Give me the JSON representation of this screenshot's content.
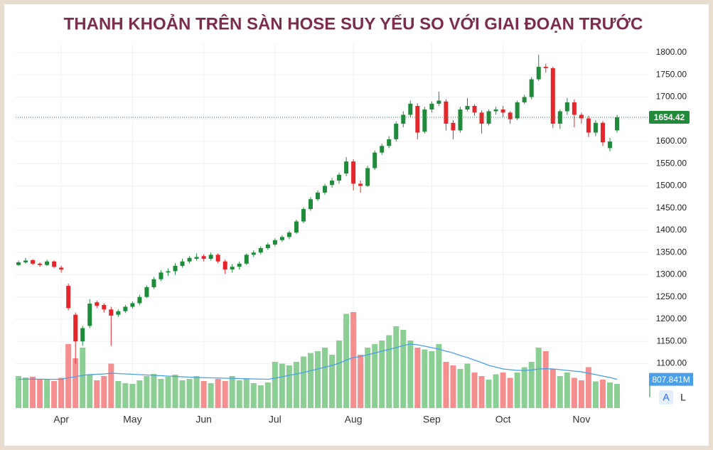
{
  "chart_data": {
    "type": "candlestick",
    "title": "THANH KHOẢN TRÊN SÀN HOSE SUY YẾU SO VỚI GIAI ĐOẠN TRƯỚC",
    "categories": [
      null,
      null,
      null,
      null,
      null,
      null,
      "Apr",
      null,
      null,
      null,
      null,
      null,
      null,
      null,
      null,
      null,
      "May",
      null,
      null,
      null,
      null,
      null,
      null,
      null,
      null,
      null,
      "Jun",
      null,
      null,
      null,
      null,
      null,
      null,
      null,
      null,
      null,
      "Jul",
      null,
      null,
      null,
      null,
      null,
      null,
      null,
      null,
      null,
      null,
      "Aug",
      null,
      null,
      null,
      null,
      null,
      null,
      null,
      null,
      null,
      null,
      "Sep",
      null,
      null,
      null,
      null,
      null,
      null,
      null,
      null,
      null,
      "Oct",
      null,
      null,
      null,
      null,
      null,
      null,
      null,
      null,
      null,
      null,
      "Nov",
      null,
      null,
      null,
      null,
      null
    ],
    "open": [
      1322,
      1328,
      1333,
      1325,
      1322,
      1330,
      1316,
      1275,
      1210,
      1150,
      1185,
      1238,
      1232,
      1222,
      1210,
      1218,
      1228,
      1236,
      1250,
      1272,
      1290,
      1305,
      1308,
      1320,
      1330,
      1336,
      1342,
      1336,
      1345,
      1330,
      1312,
      1318,
      1325,
      1345,
      1350,
      1360,
      1368,
      1378,
      1385,
      1395,
      1420,
      1448,
      1470,
      1485,
      1502,
      1512,
      1528,
      1555,
      1505,
      1500,
      1540,
      1575,
      1590,
      1605,
      1640,
      1660,
      1680,
      1622,
      1672,
      1685,
      1690,
      1642,
      1625,
      1672,
      1680,
      1665,
      1640,
      1668,
      1672,
      1665,
      1652,
      1688,
      1700,
      1740,
      1768,
      1765,
      1640,
      1668,
      1688,
      1660,
      1652,
      1620,
      1642,
      1585,
      1625
    ],
    "high": [
      1332,
      1338,
      1335,
      1328,
      1334,
      1332,
      1320,
      1280,
      1215,
      1185,
      1245,
      1242,
      1236,
      1228,
      1222,
      1232,
      1240,
      1255,
      1276,
      1295,
      1310,
      1314,
      1326,
      1336,
      1342,
      1348,
      1346,
      1350,
      1348,
      1334,
      1324,
      1330,
      1348,
      1355,
      1364,
      1372,
      1382,
      1389,
      1399,
      1424,
      1452,
      1475,
      1490,
      1505,
      1518,
      1530,
      1565,
      1560,
      1512,
      1545,
      1580,
      1595,
      1612,
      1645,
      1668,
      1692,
      1686,
      1678,
      1690,
      1712,
      1695,
      1648,
      1678,
      1698,
      1684,
      1670,
      1672,
      1678,
      1680,
      1668,
      1692,
      1705,
      1745,
      1795,
      1775,
      1768,
      1672,
      1698,
      1695,
      1665,
      1658,
      1648,
      1646,
      1608,
      1660
    ],
    "low": [
      1320,
      1325,
      1322,
      1318,
      1320,
      1315,
      1305,
      1220,
      1100,
      1140,
      1180,
      1225,
      1215,
      1140,
      1205,
      1214,
      1224,
      1232,
      1248,
      1268,
      1286,
      1298,
      1300,
      1316,
      1326,
      1332,
      1330,
      1332,
      1326,
      1302,
      1305,
      1312,
      1322,
      1340,
      1346,
      1356,
      1364,
      1374,
      1380,
      1392,
      1416,
      1444,
      1466,
      1480,
      1496,
      1505,
      1522,
      1490,
      1485,
      1498,
      1536,
      1570,
      1585,
      1600,
      1632,
      1655,
      1605,
      1618,
      1665,
      1680,
      1625,
      1605,
      1620,
      1668,
      1658,
      1618,
      1636,
      1660,
      1655,
      1640,
      1648,
      1684,
      1695,
      1736,
      1755,
      1630,
      1628,
      1660,
      1632,
      1640,
      1610,
      1612,
      1590,
      1578,
      1620
    ],
    "close": [
      1328,
      1332,
      1325,
      1322,
      1330,
      1318,
      1312,
      1225,
      1150,
      1180,
      1235,
      1230,
      1222,
      1208,
      1218,
      1228,
      1236,
      1250,
      1272,
      1290,
      1305,
      1308,
      1320,
      1330,
      1338,
      1340,
      1336,
      1345,
      1330,
      1312,
      1318,
      1325,
      1345,
      1350,
      1360,
      1368,
      1378,
      1385,
      1395,
      1420,
      1448,
      1470,
      1485,
      1500,
      1512,
      1525,
      1555,
      1505,
      1500,
      1540,
      1575,
      1590,
      1605,
      1640,
      1660,
      1685,
      1620,
      1672,
      1685,
      1692,
      1640,
      1625,
      1672,
      1680,
      1665,
      1640,
      1668,
      1672,
      1665,
      1650,
      1688,
      1700,
      1740,
      1768,
      1765,
      1640,
      1668,
      1688,
      1660,
      1652,
      1620,
      1642,
      1598,
      1600,
      1654.42
    ],
    "volume": [
      900,
      860,
      880,
      820,
      800,
      760,
      850,
      1800,
      1400,
      1700,
      950,
      780,
      900,
      1250,
      760,
      700,
      680,
      780,
      900,
      960,
      820,
      880,
      940,
      780,
      820,
      900,
      760,
      700,
      820,
      760,
      900,
      780,
      820,
      700,
      640,
      720,
      1300,
      1250,
      1200,
      1300,
      1450,
      1550,
      1600,
      1700,
      1500,
      1900,
      2650,
      2700,
      1500,
      1700,
      1800,
      1900,
      2050,
      2300,
      2200,
      1900,
      1700,
      1650,
      1600,
      1800,
      1300,
      1200,
      1100,
      1250,
      1000,
      900,
      800,
      950,
      1000,
      850,
      1000,
      1150,
      1300,
      1700,
      1600,
      1100,
      900,
      1000,
      850,
      780,
      1150,
      750,
      800,
      720,
      680
    ],
    "volume_ma": [
      810,
      812,
      815,
      812,
      810,
      808,
      812,
      850,
      880,
      920,
      940,
      950,
      960,
      980,
      970,
      960,
      950,
      940,
      930,
      920,
      910,
      900,
      890,
      880,
      870,
      860,
      855,
      850,
      845,
      840,
      835,
      830,
      825,
      820,
      815,
      810,
      840,
      880,
      920,
      960,
      1000,
      1050,
      1100,
      1150,
      1200,
      1260,
      1350,
      1420,
      1450,
      1500,
      1550,
      1600,
      1650,
      1700,
      1760,
      1800,
      1780,
      1740,
      1700,
      1660,
      1600,
      1550,
      1480,
      1420,
      1350,
      1280,
      1200,
      1150,
      1100,
      1080,
      1060,
      1060,
      1070,
      1100,
      1110,
      1100,
      1080,
      1060,
      1040,
      1020,
      980,
      940,
      900,
      860,
      807.841
    ],
    "volume_ma_value_labels": [
      null,
      null,
      null,
      null,
      null,
      null,
      null,
      null,
      null,
      null,
      null,
      null,
      null,
      null,
      null,
      null,
      null,
      null,
      null,
      null,
      null,
      null,
      null,
      null,
      null,
      null,
      null,
      null,
      null,
      null,
      null,
      null,
      null,
      null,
      null,
      null,
      null,
      null,
      null,
      null,
      null,
      null,
      null,
      null,
      null,
      null,
      null,
      null,
      null,
      null,
      null,
      null,
      null,
      null,
      null,
      null,
      null,
      null,
      null,
      null,
      null,
      null,
      null,
      null,
      null,
      null,
      null,
      null,
      null,
      null,
      null,
      null,
      null,
      null,
      null,
      null,
      null,
      null,
      null,
      null,
      null,
      null,
      null,
      null,
      "807.841M"
    ],
    "ylim": [
      1000,
      1820
    ],
    "yticks": [
      {
        "value": 1100,
        "label": "1100.00"
      },
      {
        "value": 1150,
        "label": "1150.00"
      },
      {
        "value": 1200,
        "label": "1200.00"
      },
      {
        "value": 1250,
        "label": "1250.00"
      },
      {
        "value": 1300,
        "label": "1300.00"
      },
      {
        "value": 1350,
        "label": "1350.00"
      },
      {
        "value": 1400,
        "label": "1400.00"
      },
      {
        "value": 1450,
        "label": "1450.00"
      },
      {
        "value": 1500,
        "label": "1500.00"
      },
      {
        "value": 1550,
        "label": "1550.00"
      },
      {
        "value": 1600,
        "label": "1600.00"
      },
      {
        "value": 1650,
        "label": "1650.00"
      },
      {
        "value": 1700,
        "label": "1700.00"
      },
      {
        "value": 1750,
        "label": "1750.00"
      },
      {
        "value": 1800,
        "label": "1800.00"
      }
    ],
    "volume_lim": [
      0,
      3000
    ],
    "grid": true,
    "up_color": "#1f8b3b",
    "down_color": "#e5262b",
    "volume_up_color": "#8ccf94",
    "volume_down_color": "#f58f8f",
    "volume_ma_color": "#4a9fe6",
    "last_price_color": "#1f8b3b"
  },
  "controls": [
    "A",
    "L"
  ]
}
